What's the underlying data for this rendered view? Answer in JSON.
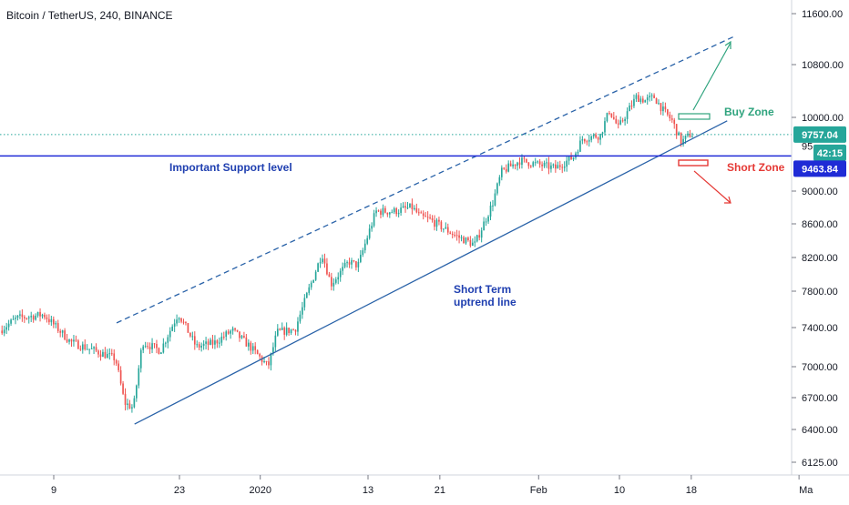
{
  "header": {
    "title": "Bitcoin / TetherUS, 240, BINANCE"
  },
  "chart_data": {
    "type": "candlestick",
    "symbol": "Bitcoin / TetherUS",
    "interval": "240",
    "exchange": "BINANCE",
    "price_axis": {
      "ticks": [
        11600,
        10800,
        10000,
        9000,
        8600,
        8200,
        7800,
        7400,
        7000,
        6700,
        6400,
        6125
      ],
      "tick_labels": [
        "11600.00",
        "10800.00",
        "10000.00",
        "9000.00",
        "8600.00",
        "8200.00",
        "7800.00",
        "7400.00",
        "7000.00",
        "6700.00",
        "6400.00",
        "6125.00"
      ],
      "range": [
        6050,
        11800
      ],
      "scale": "log"
    },
    "time_axis": {
      "tick_labels": [
        "9",
        "23",
        "2020",
        "13",
        "21",
        "Feb",
        "10",
        "18",
        "Ma"
      ],
      "tick_dates": [
        "2019-12-09",
        "2019-12-23",
        "2020-01-01",
        "2020-01-13",
        "2020-01-21",
        "2020-02-01",
        "2020-02-10",
        "2020-02-18",
        "2020-03-01"
      ],
      "range": [
        "2019-12-02",
        "2020-03-01"
      ]
    },
    "series": [
      {
        "kind": "candles",
        "up_color": "#26a69a",
        "down_color": "#ef5350",
        "anchors": [
          [
            "2019-12-02",
            7290
          ],
          [
            "2019-12-05",
            7500
          ],
          [
            "2019-12-08",
            7540
          ],
          [
            "2019-12-11",
            7250
          ],
          [
            "2019-12-14",
            7150
          ],
          [
            "2019-12-16",
            7080
          ],
          [
            "2019-12-17",
            6650
          ],
          [
            "2019-12-18",
            6600
          ],
          [
            "2019-12-19",
            7250
          ],
          [
            "2019-12-21",
            7160
          ],
          [
            "2019-12-23",
            7550
          ],
          [
            "2019-12-25",
            7200
          ],
          [
            "2019-12-27",
            7240
          ],
          [
            "2019-12-29",
            7370
          ],
          [
            "2019-12-31",
            7200
          ],
          [
            "2020-01-02",
            7000
          ],
          [
            "2020-01-03",
            7350
          ],
          [
            "2020-01-05",
            7380
          ],
          [
            "2020-01-07",
            7950
          ],
          [
            "2020-01-08",
            8250
          ],
          [
            "2020-01-09",
            7880
          ],
          [
            "2020-01-11",
            8150
          ],
          [
            "2020-01-12",
            8100
          ],
          [
            "2020-01-14",
            8750
          ],
          [
            "2020-01-16",
            8750
          ],
          [
            "2020-01-18",
            8800
          ],
          [
            "2020-01-19",
            8680
          ],
          [
            "2020-01-20",
            8650
          ],
          [
            "2020-01-23",
            8450
          ],
          [
            "2020-01-25",
            8350
          ],
          [
            "2020-01-27",
            8850
          ],
          [
            "2020-01-28",
            9250
          ],
          [
            "2020-01-30",
            9400
          ],
          [
            "2020-02-01",
            9350
          ],
          [
            "2020-02-03",
            9300
          ],
          [
            "2020-02-05",
            9450
          ],
          [
            "2020-02-06",
            9700
          ],
          [
            "2020-02-08",
            9750
          ],
          [
            "2020-02-09",
            10100
          ],
          [
            "2020-02-10",
            9850
          ],
          [
            "2020-02-12",
            10300
          ],
          [
            "2020-02-13",
            10250
          ],
          [
            "2020-02-14",
            10300
          ],
          [
            "2020-02-15",
            10100
          ],
          [
            "2020-02-16",
            9950
          ],
          [
            "2020-02-17",
            9650
          ],
          [
            "2020-02-18",
            9757
          ]
        ]
      },
      {
        "kind": "trendline",
        "name": "Short Term uptrend line",
        "style": "solid",
        "color": "#2962a8",
        "from": [
          "2019-12-18",
          6450
        ],
        "to": [
          "2020-02-22",
          9950
        ]
      },
      {
        "kind": "trendline",
        "style": "dashed",
        "color": "#2962a8",
        "from": [
          "2019-12-16",
          7450
        ],
        "to": [
          "2020-02-23",
          11250
        ]
      },
      {
        "kind": "hline",
        "name": "Important Support level",
        "price": 9463.84,
        "color": "#1f2bd6"
      },
      {
        "kind": "hline",
        "style": "dotted",
        "price": 9757.04,
        "color": "#26a69a"
      }
    ],
    "annotations": [
      {
        "text": "Important Support level",
        "color": "#1f3fb0"
      },
      {
        "text": "Short Term\nuptrend line",
        "color": "#1f3fb0"
      },
      {
        "text": "Buy Zone",
        "color": "#2ea37d"
      },
      {
        "text": "Short Zone",
        "color": "#e53935"
      }
    ],
    "price_badges": [
      {
        "price": 9757.04,
        "label": "9757.04",
        "color": "#26a69a"
      },
      {
        "label": "42:15",
        "color": "#26a69a"
      },
      {
        "price": 9463.84,
        "label": "9463.84",
        "color": "#1f2bd6"
      }
    ],
    "legend": "none",
    "grid": false
  }
}
